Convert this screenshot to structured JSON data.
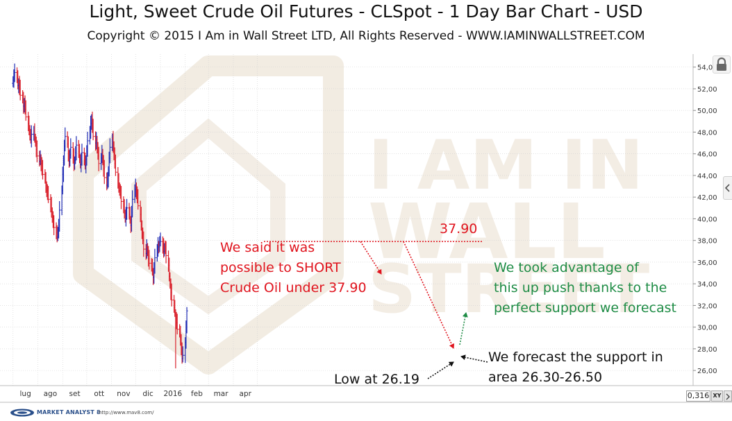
{
  "title": "Light, Sweet Crude Oil Futures - CLSpot - 1 Day Bar Chart - USD",
  "subtitle": "Copyright © 2015 I Am in Wall Street LTD, All Rights Reserved  -  WWW.IAMINWALLSTREET.COM",
  "watermark": {
    "lines": [
      "I AM IN",
      "WALL",
      "STREET"
    ],
    "color": "#e8dccb"
  },
  "colors": {
    "bull_bar": "#1f2bb4",
    "bear_bar": "#d9202b",
    "annotation_red": "#e0141e",
    "annotation_green": "#1e8c45",
    "grid": "#d0d0d0"
  },
  "chart_data": {
    "type": "ohlc",
    "series_start": "2015-07-01",
    "x_tick_labels": [
      "lug",
      "ago",
      "set",
      "ott",
      "nov",
      "dic",
      "2016",
      "feb",
      "mar",
      "apr"
    ],
    "y_tick_labels": [
      "26,00",
      "28,00",
      "30,00",
      "32,00",
      "34,00",
      "36,00",
      "38,00",
      "40,00",
      "42,00",
      "44,00",
      "46,00",
      "48,00",
      "50,00",
      "52,00",
      "54,00"
    ],
    "ylim": [
      24.6,
      55.2
    ],
    "grid": true,
    "closes": [
      52.8,
      53.2,
      53.5,
      53.0,
      52.3,
      52.6,
      52.0,
      51.4,
      51.0,
      50.4,
      50.8,
      50.1,
      49.4,
      48.8,
      48.3,
      47.7,
      47.3,
      47.8,
      48.1,
      47.5,
      47.0,
      46.4,
      45.8,
      45.3,
      45.6,
      45.1,
      44.6,
      44.1,
      43.6,
      43.1,
      42.6,
      42.2,
      41.8,
      41.3,
      40.7,
      40.1,
      39.5,
      39.2,
      38.7,
      38.3,
      38.9,
      39.4,
      40.8,
      42.6,
      44.1,
      45.5,
      46.7,
      47.6,
      46.9,
      46.0,
      45.3,
      45.9,
      46.6,
      45.8,
      45.0,
      45.4,
      46.1,
      46.8,
      46.2,
      45.6,
      45.0,
      45.5,
      46.1,
      45.4,
      44.9,
      45.5,
      46.2,
      47.2,
      48.1,
      48.8,
      49.3,
      48.4,
      47.6,
      47.0,
      47.3,
      46.5,
      45.8,
      45.1,
      45.6,
      46.1,
      45.3,
      44.6,
      43.8,
      43.1,
      43.6,
      44.5,
      45.6,
      46.6,
      47.4,
      46.8,
      46.0,
      45.1,
      44.3,
      43.5,
      43.0,
      42.6,
      42.2,
      41.6,
      41.1,
      40.5,
      40.0,
      40.5,
      41.0,
      40.4,
      39.9,
      39.4,
      40.6,
      41.8,
      42.7,
      43.0,
      42.4,
      41.9,
      41.2,
      40.4,
      39.5,
      38.6,
      38.0,
      37.2,
      36.8,
      37.4,
      36.9,
      36.3,
      35.9,
      35.6,
      35.1,
      34.6,
      35.4,
      36.4,
      37.2,
      37.6,
      37.4,
      37.8,
      37.9,
      37.5,
      37.0,
      37.4,
      37.1,
      36.6,
      35.7,
      34.7,
      33.9,
      33.2,
      32.5,
      31.8,
      31.3,
      30.8,
      30.4,
      29.8,
      29.4,
      29.0,
      28.0,
      27.1,
      27.4,
      28.6,
      29.9,
      31.5
    ],
    "low": {
      "value": 26.19,
      "date": "2016-01-20"
    },
    "annotations": [
      {
        "id": "resistance",
        "text": "37.90",
        "value": 37.9
      },
      {
        "id": "short_call",
        "lines": [
          "We said it was",
          "possible to SHORT",
          "Crude Oil under 37.90"
        ]
      },
      {
        "id": "bounce",
        "lines": [
          "We took advantage of",
          "this up push thanks to the",
          "perfect support we forecast"
        ]
      },
      {
        "id": "low_label",
        "text": "Low at 26.19"
      },
      {
        "id": "support",
        "lines": [
          "We forecast the support in",
          "area 26.30-26.50"
        ]
      }
    ]
  },
  "toolbar": {
    "zoom_value": "0,316",
    "xy_label": "XY",
    "lock_icon": "lock-icon"
  },
  "footer": {
    "brand": "MARKET ANALYST 8",
    "url": "http://www.mav8.com/"
  }
}
